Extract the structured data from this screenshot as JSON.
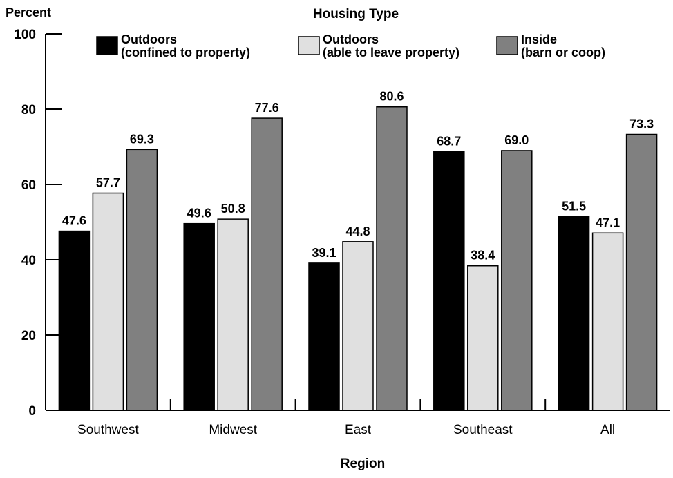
{
  "chart_data": {
    "type": "bar",
    "title": "Housing Type",
    "ylabel": "Percent",
    "xlabel": "Region",
    "ylim": [
      0,
      100
    ],
    "yticks": [
      0,
      20,
      40,
      60,
      80,
      100
    ],
    "categories": [
      "Southwest",
      "Midwest",
      "East",
      "Southeast",
      "All"
    ],
    "series": [
      {
        "name": "Outdoors\n(confined to property)",
        "name_lines": [
          "Outdoors",
          "(confined to property)"
        ],
        "color": "#000000",
        "values": [
          47.6,
          49.6,
          39.1,
          68.7,
          51.5
        ]
      },
      {
        "name": "Outdoors\n(able to leave property)",
        "name_lines": [
          "Outdoors",
          "(able to leave property)"
        ],
        "color": "#e0e0e0",
        "values": [
          57.7,
          50.8,
          44.8,
          38.4,
          47.1
        ]
      },
      {
        "name": "Inside\n(barn or coop)",
        "name_lines": [
          "Inside",
          "(barn or coop)"
        ],
        "color": "#808080",
        "values": [
          69.3,
          77.6,
          80.6,
          69.0,
          73.3
        ]
      }
    ],
    "value_labels": [
      [
        "47.6",
        "49.6",
        "39.1",
        "68.7",
        "51.5"
      ],
      [
        "57.7",
        "50.8",
        "44.8",
        "38.4",
        "47.1"
      ],
      [
        "69.3",
        "77.6",
        "80.6",
        "69.0",
        "73.3"
      ]
    ],
    "legend_position": "top",
    "grid": false
  }
}
